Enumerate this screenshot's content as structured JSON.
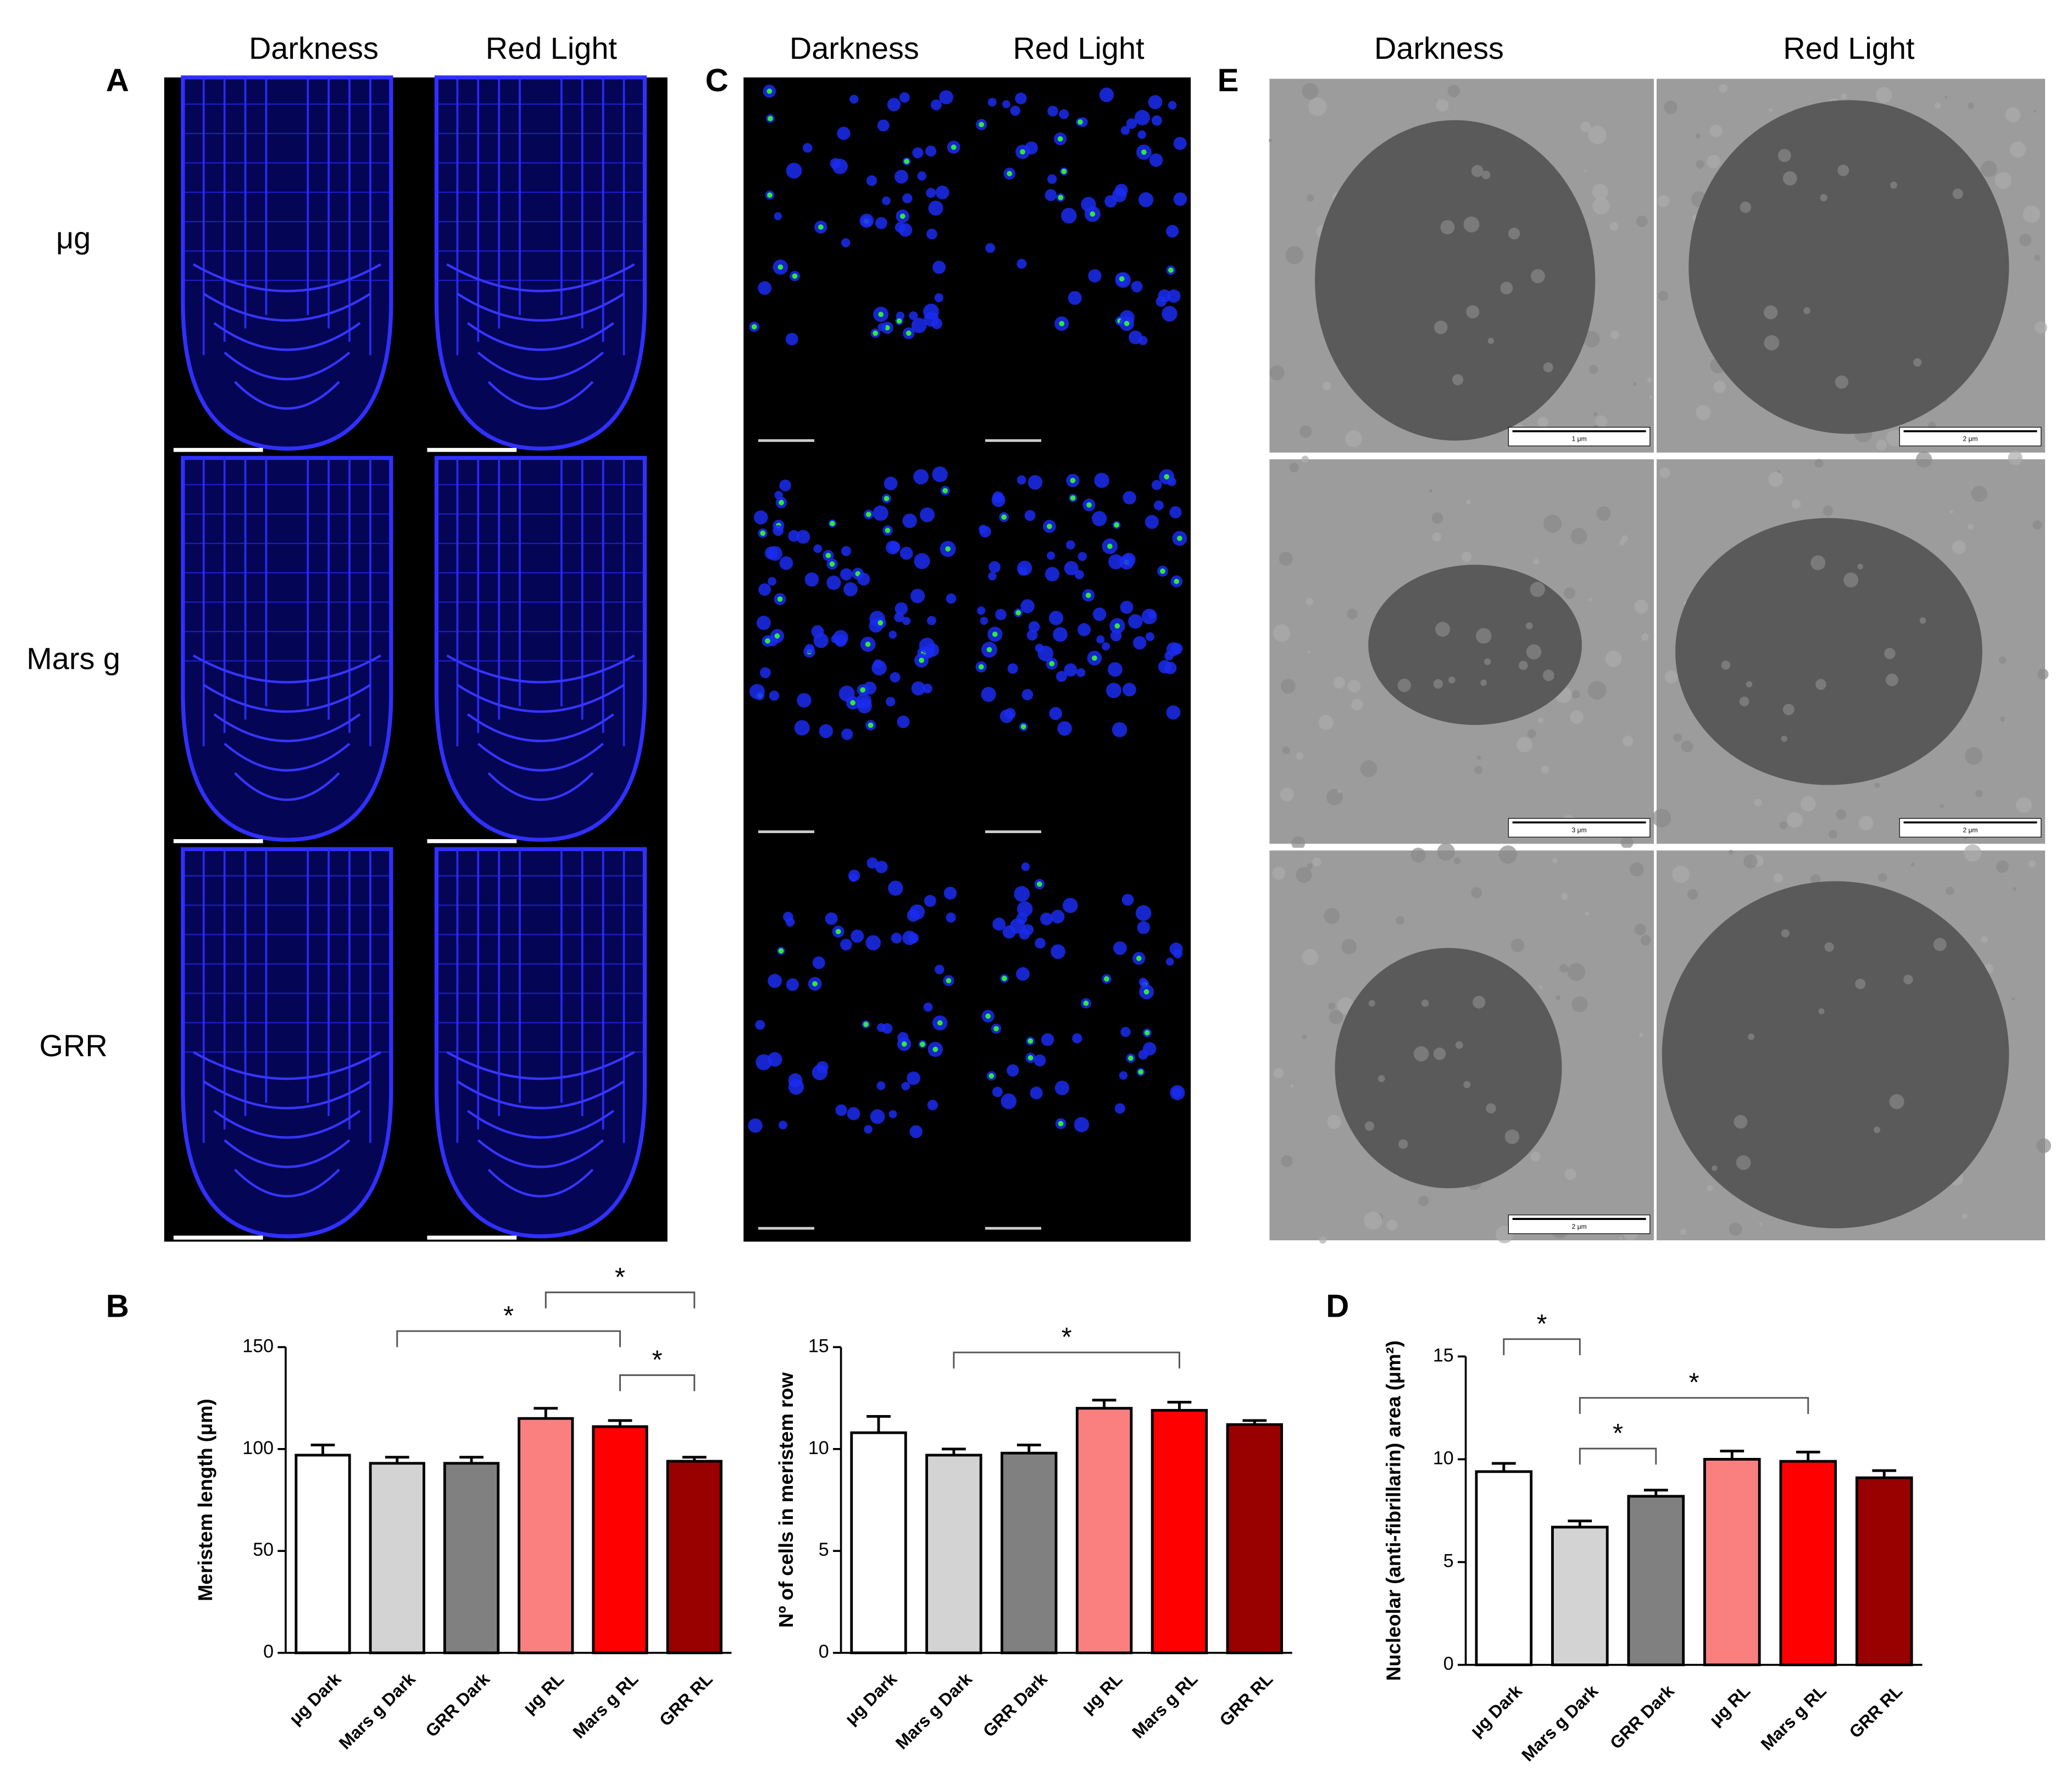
{
  "panel_labels": [
    "A",
    "B",
    "C",
    "D",
    "E"
  ],
  "panel_A": {
    "columns": [
      "Darkness",
      "Red Light"
    ],
    "rows": [
      "μg",
      "Mars g",
      "GRR"
    ]
  },
  "panel_C": {
    "columns": [
      "Darkness",
      "Red Light"
    ]
  },
  "panel_E": {
    "columns": [
      "Darkness",
      "Red Light"
    ],
    "scale_bars": [
      "1 μm",
      "2 μm",
      "3 μm",
      "2 μm",
      "2 μm"
    ]
  },
  "chart_data": [
    {
      "type": "bar",
      "y_label": "Meristem length (μm)",
      "categories": [
        "μg Dark",
        "Mars g Dark",
        "GRR Dark",
        "μg RL",
        "Mars g RL",
        "GRR RL"
      ],
      "values": [
        97,
        93,
        93,
        115,
        111,
        94
      ],
      "errors": [
        5,
        3,
        3,
        5,
        3,
        2
      ],
      "colors": [
        "#ffffff",
        "#d3d3d3",
        "#808080",
        "#fa8080",
        "#ff0000",
        "#990000"
      ],
      "ylim": [
        0,
        150
      ],
      "yticks": [
        0,
        50,
        100,
        150
      ],
      "significance": [
        {
          "from": "Mars g Dark",
          "to": "Mars g RL",
          "label": "*"
        },
        {
          "from": "μg RL",
          "to": "GRR RL",
          "label": "*"
        },
        {
          "from": "Mars g RL",
          "to": "GRR RL",
          "label": "*"
        }
      ]
    },
    {
      "type": "bar",
      "y_label": "Nº of cells in meristem row",
      "categories": [
        "μg Dark",
        "Mars g Dark",
        "GRR Dark",
        "μg RL",
        "Mars g RL",
        "GRR RL"
      ],
      "values": [
        10.8,
        9.7,
        9.8,
        12,
        11.9,
        11.2
      ],
      "errors": [
        0.8,
        0.3,
        0.4,
        0.4,
        0.4,
        0.2
      ],
      "colors": [
        "#ffffff",
        "#d3d3d3",
        "#808080",
        "#fa8080",
        "#ff0000",
        "#990000"
      ],
      "ylim": [
        0,
        15
      ],
      "yticks": [
        0,
        5,
        10,
        15
      ],
      "significance": [
        {
          "from": "Mars g Dark",
          "to": "Mars g RL",
          "label": "*"
        }
      ]
    },
    {
      "type": "bar",
      "y_label": "Nucleolar (anti-fibrillarin) area (μm²)",
      "categories": [
        "μg Dark",
        "Mars g Dark",
        "GRR Dark",
        "μg RL",
        "Mars g RL",
        "GRR RL"
      ],
      "values": [
        9.4,
        6.7,
        8.2,
        10,
        9.9,
        9.1
      ],
      "errors": [
        0.4,
        0.3,
        0.3,
        0.4,
        0.45,
        0.35
      ],
      "colors": [
        "#ffffff",
        "#d3d3d3",
        "#808080",
        "#fa8080",
        "#ff0000",
        "#990000"
      ],
      "ylim": [
        0,
        15
      ],
      "yticks": [
        0,
        5,
        10,
        15
      ],
      "significance": [
        {
          "from": "μg Dark",
          "to": "Mars g Dark",
          "label": "*"
        },
        {
          "from": "Mars g Dark",
          "to": "GRR Dark",
          "label": "*"
        },
        {
          "from": "Mars g Dark",
          "to": "Mars g RL",
          "label": "*"
        }
      ]
    }
  ]
}
